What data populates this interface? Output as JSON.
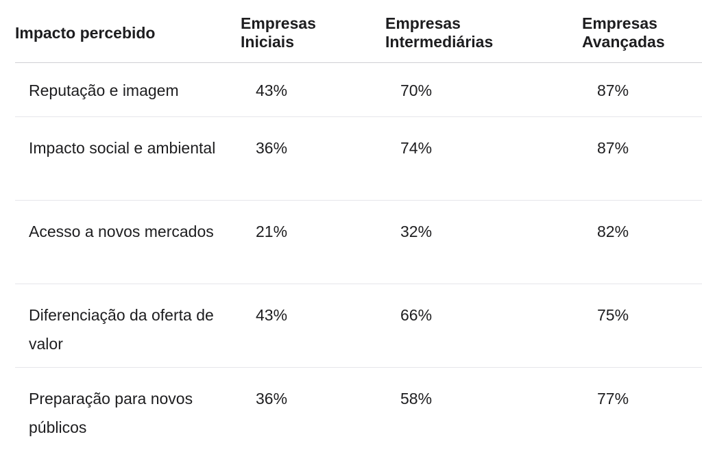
{
  "table": {
    "headers": [
      {
        "lines": [
          "Impacto percebido"
        ]
      },
      {
        "lines": [
          "Empresas",
          "Iniciais"
        ]
      },
      {
        "lines": [
          "Empresas",
          "Intermediárias"
        ]
      },
      {
        "lines": [
          "Empresas",
          "Avançadas"
        ]
      }
    ],
    "rows": [
      {
        "label": "Reputação e imagem",
        "iniciais": "43%",
        "intermediarias": "70%",
        "avancadas": "87%"
      },
      {
        "label": "Impacto social e ambiental",
        "iniciais": "36%",
        "intermediarias": "74%",
        "avancadas": "87%"
      },
      {
        "label": "Acesso a novos mercados",
        "iniciais": "21%",
        "intermediarias": "32%",
        "avancadas": "82%"
      },
      {
        "label": "Diferenciação da oferta de valor",
        "iniciais": "43%",
        "intermediarias": "66%",
        "avancadas": "75%"
      },
      {
        "label": "Preparação para novos públicos",
        "iniciais": "36%",
        "intermediarias": "58%",
        "avancadas": "77%"
      }
    ]
  }
}
